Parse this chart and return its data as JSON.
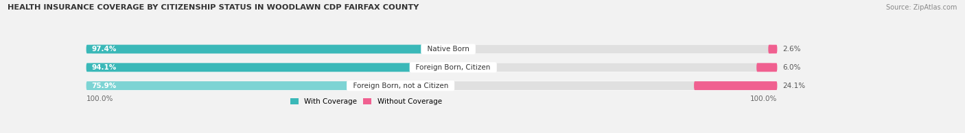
{
  "title": "HEALTH INSURANCE COVERAGE BY CITIZENSHIP STATUS IN WOODLAWN CDP FAIRFAX COUNTY",
  "source": "Source: ZipAtlas.com",
  "categories": [
    "Native Born",
    "Foreign Born, Citizen",
    "Foreign Born, not a Citizen"
  ],
  "with_coverage": [
    97.4,
    94.1,
    75.9
  ],
  "without_coverage": [
    2.6,
    6.0,
    24.1
  ],
  "color_with_0": "#3ab8b8",
  "color_with_1": "#3ab8b8",
  "color_with_2": "#7dd4d4",
  "color_without": "#f06090",
  "bg_color": "#f2f2f2",
  "bar_bg": "#e0e0e0",
  "legend_with": "With Coverage",
  "legend_without": "Without Coverage",
  "axis_label_left": "100.0%",
  "axis_label_right": "100.0%",
  "total_width": 100
}
